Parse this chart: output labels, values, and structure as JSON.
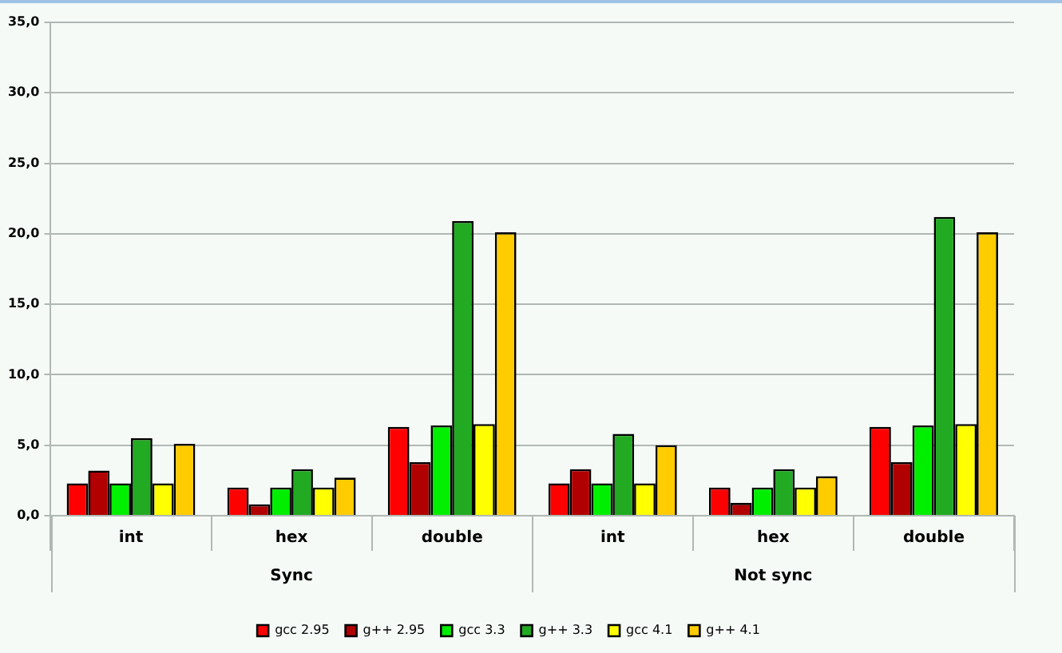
{
  "chart_data": {
    "type": "bar",
    "categories": [
      "int",
      "hex",
      "double",
      "int",
      "hex",
      "double"
    ],
    "annotations": [
      "Sync",
      "Not sync"
    ],
    "series": [
      {
        "name": "gcc 2.95",
        "color": "#ff0000",
        "values": [
          2.3,
          2.0,
          6.3,
          2.3,
          2.0,
          6.3
        ]
      },
      {
        "name": "g++ 2.95",
        "color": "#b00000",
        "values": [
          3.2,
          0.8,
          3.8,
          3.3,
          0.9,
          3.8
        ]
      },
      {
        "name": "gcc 3.3",
        "color": "#00ee00",
        "values": [
          2.3,
          2.0,
          6.4,
          2.3,
          2.0,
          6.4
        ]
      },
      {
        "name": "g++ 3.3",
        "color": "#22aa22",
        "values": [
          5.5,
          3.3,
          20.9,
          5.8,
          3.3,
          21.2
        ]
      },
      {
        "name": "gcc 4.1",
        "color": "#ffff00",
        "values": [
          2.3,
          2.0,
          6.5,
          2.3,
          2.0,
          6.5
        ]
      },
      {
        "name": "g++ 4.1",
        "color": "#ffcc00",
        "values": [
          5.1,
          2.7,
          20.1,
          5.0,
          2.8,
          20.1
        ]
      }
    ],
    "ylim": [
      0,
      35
    ],
    "yticks": [
      {
        "value": 0,
        "label": "0,0"
      },
      {
        "value": 5,
        "label": "5,0"
      },
      {
        "value": 10,
        "label": "10,0"
      },
      {
        "value": 15,
        "label": "15,0"
      },
      {
        "value": 20,
        "label": "20,0"
      },
      {
        "value": 25,
        "label": "25,0"
      },
      {
        "value": 30,
        "label": "30,0"
      },
      {
        "value": 35,
        "label": "35,0"
      }
    ],
    "grid": "y",
    "legend": "bottom"
  }
}
